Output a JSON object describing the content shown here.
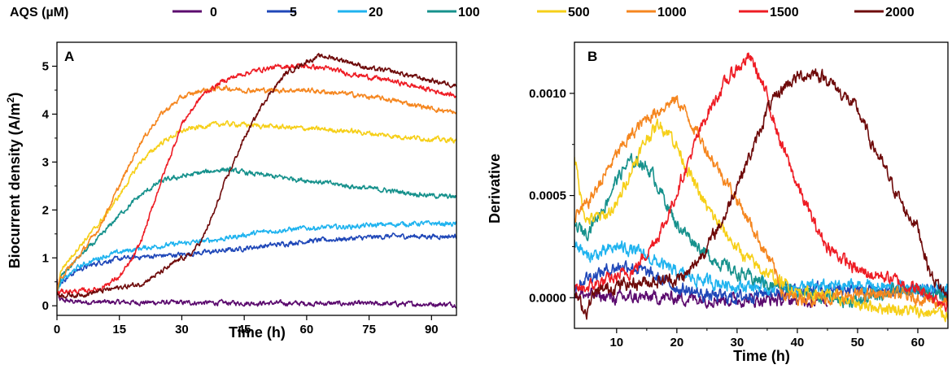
{
  "legend": {
    "title": "AQS (µM)",
    "entries": [
      {
        "label": "0",
        "color": "#5b0a6e"
      },
      {
        "label": "5",
        "color": "#1f47b8"
      },
      {
        "label": "20",
        "color": "#1fb3ef"
      },
      {
        "label": "100",
        "color": "#16918c"
      },
      {
        "label": "500",
        "color": "#f6cf18"
      },
      {
        "label": "1000",
        "color": "#f5861f"
      },
      {
        "label": "1500",
        "color": "#ee1c24"
      },
      {
        "label": "2000",
        "color": "#6e0a0a"
      }
    ]
  },
  "chart_data": [
    {
      "panel": "A",
      "type": "line",
      "title": "",
      "xlabel": "Time (h)",
      "ylabel": "Biocurrent density (A/m²)",
      "ylabel_main": "Biocurrent density (A/m",
      "ylabel_sup": "2",
      "ylabel_close": ")",
      "xlim": [
        0,
        96
      ],
      "ylim": [
        -0.2,
        5.5
      ],
      "xticks": [
        0,
        15,
        30,
        45,
        60,
        75,
        90
      ],
      "xtick_labels": [
        "0",
        "15",
        "30",
        "45",
        "60",
        "75",
        "90"
      ],
      "yticks": [
        0,
        1,
        2,
        3,
        4,
        5
      ],
      "ytick_labels": [
        "0",
        "1",
        "2",
        "3",
        "4",
        "5"
      ],
      "noise": 0.035,
      "series": [
        {
          "name": "0",
          "color": "#5b0a6e",
          "x": [
            0,
            0.5,
            5,
            20,
            40,
            60,
            80,
            96
          ],
          "y": [
            0.55,
            0.12,
            0.08,
            0.07,
            0.06,
            0.05,
            0.04,
            0.03
          ]
        },
        {
          "name": "5",
          "color": "#1f47b8",
          "x": [
            0,
            1,
            5,
            10,
            15,
            20,
            30,
            40,
            50,
            60,
            70,
            80,
            90,
            96
          ],
          "y": [
            0.3,
            0.5,
            0.75,
            0.9,
            0.98,
            1.02,
            1.07,
            1.15,
            1.25,
            1.35,
            1.4,
            1.45,
            1.45,
            1.45
          ]
        },
        {
          "name": "20",
          "color": "#1fb3ef",
          "x": [
            0,
            1,
            5,
            10,
            15,
            20,
            30,
            40,
            50,
            60,
            70,
            80,
            90,
            96
          ],
          "y": [
            0.3,
            0.5,
            0.8,
            1.0,
            1.12,
            1.2,
            1.3,
            1.4,
            1.55,
            1.62,
            1.65,
            1.7,
            1.72,
            1.7
          ]
        },
        {
          "name": "100",
          "color": "#16918c",
          "x": [
            0,
            1,
            5,
            10,
            15,
            20,
            25,
            30,
            35,
            40,
            45,
            50,
            60,
            70,
            80,
            90,
            96
          ],
          "y": [
            0.3,
            0.6,
            1.0,
            1.4,
            1.9,
            2.3,
            2.6,
            2.7,
            2.78,
            2.85,
            2.78,
            2.72,
            2.62,
            2.5,
            2.4,
            2.3,
            2.27
          ]
        },
        {
          "name": "500",
          "color": "#f6cf18",
          "x": [
            0,
            1,
            5,
            10,
            15,
            20,
            25,
            30,
            35,
            40,
            45,
            50,
            60,
            70,
            80,
            90,
            96
          ],
          "y": [
            0.3,
            0.75,
            1.2,
            1.7,
            2.3,
            3.0,
            3.4,
            3.65,
            3.75,
            3.8,
            3.78,
            3.75,
            3.7,
            3.65,
            3.55,
            3.48,
            3.45
          ]
        },
        {
          "name": "1000",
          "color": "#f5861f",
          "x": [
            0,
            1,
            5,
            10,
            15,
            20,
            25,
            30,
            35,
            40,
            45,
            50,
            60,
            70,
            80,
            90,
            96
          ],
          "y": [
            0.3,
            0.6,
            1.0,
            1.6,
            2.5,
            3.4,
            4.0,
            4.35,
            4.5,
            4.55,
            4.5,
            4.5,
            4.5,
            4.42,
            4.3,
            4.12,
            4.02
          ]
        },
        {
          "name": "1500",
          "color": "#ee1c24",
          "x": [
            0,
            1,
            5,
            10,
            15,
            18,
            20,
            22,
            25,
            28,
            30,
            35,
            40,
            45,
            50,
            55,
            60,
            65,
            70,
            80,
            90,
            96
          ],
          "y": [
            0.25,
            0.3,
            0.3,
            0.35,
            0.6,
            0.95,
            1.3,
            1.8,
            2.6,
            3.3,
            3.8,
            4.4,
            4.7,
            4.85,
            4.95,
            5.0,
            5.0,
            4.95,
            4.85,
            4.7,
            4.5,
            4.38
          ]
        },
        {
          "name": "2000",
          "color": "#6e0a0a",
          "x": [
            0,
            1,
            5,
            10,
            15,
            20,
            25,
            30,
            32,
            35,
            38,
            40,
            45,
            50,
            55,
            60,
            63,
            65,
            70,
            75,
            80,
            85,
            90,
            96
          ],
          "y": [
            0.25,
            0.22,
            0.22,
            0.3,
            0.38,
            0.45,
            0.7,
            1.0,
            1.05,
            1.4,
            2.0,
            2.5,
            3.5,
            4.3,
            4.85,
            5.1,
            5.2,
            5.2,
            5.1,
            4.95,
            4.9,
            4.8,
            4.7,
            4.6
          ]
        }
      ]
    },
    {
      "panel": "B",
      "type": "line",
      "title": "",
      "xlabel": "Time (h)",
      "ylabel": "Derivative",
      "xlim": [
        3,
        65
      ],
      "ylim": [
        -0.00015,
        0.00125
      ],
      "xticks": [
        10,
        20,
        30,
        40,
        50,
        60
      ],
      "xtick_labels": [
        "10",
        "20",
        "30",
        "40",
        "50",
        "60"
      ],
      "yticks": [
        0,
        0.0005,
        0.001
      ],
      "ytick_labels": [
        "0.0000",
        "0.0005",
        "0.0010"
      ],
      "noise": 2.2e-05,
      "series": [
        {
          "name": "0",
          "color": "#5b0a6e",
          "x": [
            3,
            10,
            20,
            30,
            40,
            45
          ],
          "y": [
            2e-05,
            0.0,
            0.0,
            -1e-05,
            -1e-05,
            -1e-05
          ]
        },
        {
          "name": "5",
          "color": "#1f47b8",
          "x": [
            3,
            5,
            8,
            10,
            12,
            15,
            20,
            25,
            30,
            35,
            40,
            50,
            60,
            65
          ],
          "y": [
            5e-05,
            0.0001,
            0.00013,
            0.00015,
            0.00016,
            0.00012,
            5e-05,
            1e-05,
            0.0,
            3e-05,
            4e-05,
            4e-05,
            3e-05,
            3e-05
          ]
        },
        {
          "name": "20",
          "color": "#1fb3ef",
          "x": [
            3,
            5,
            8,
            10,
            12,
            15,
            20,
            25,
            30,
            35,
            40,
            50,
            60,
            65
          ],
          "y": [
            0.00028,
            0.0002,
            0.00022,
            0.00025,
            0.00024,
            0.0002,
            0.00012,
            8e-05,
            6e-05,
            5e-05,
            5e-05,
            6e-05,
            4e-05,
            3e-05
          ]
        },
        {
          "name": "100",
          "color": "#16918c",
          "x": [
            3,
            5,
            8,
            10,
            12,
            14,
            16,
            18,
            20,
            25,
            30,
            35,
            40,
            45,
            50,
            55,
            60,
            65
          ],
          "y": [
            0.00035,
            0.00032,
            0.00045,
            0.00058,
            0.00066,
            0.00067,
            0.0006,
            0.00048,
            0.00036,
            0.00021,
            0.00012,
            7e-05,
            3e-05,
            0.0,
            -2e-05,
            3e-05,
            3e-05,
            0.0
          ]
        },
        {
          "name": "500",
          "color": "#f6cf18",
          "x": [
            3,
            4,
            5,
            8,
            10,
            12,
            15,
            17,
            19,
            21,
            23,
            25,
            28,
            30,
            33,
            36,
            40,
            45,
            50,
            55,
            60,
            65
          ],
          "y": [
            0.0007,
            0.0005,
            0.00038,
            0.0004,
            0.00045,
            0.0006,
            0.00078,
            0.00085,
            0.0008,
            0.00068,
            0.00055,
            0.00044,
            0.00032,
            0.00024,
            0.00016,
            0.0001,
            3e-05,
            1e-05,
            -3e-05,
            -5e-05,
            -7e-05,
            -8e-05
          ]
        },
        {
          "name": "1000",
          "color": "#f5861f",
          "x": [
            3,
            5,
            8,
            10,
            12,
            15,
            18,
            20,
            22,
            25,
            28,
            30,
            33,
            36,
            38,
            40,
            45,
            50,
            55,
            60,
            65
          ],
          "y": [
            0.0004,
            0.00045,
            0.0006,
            0.0007,
            0.00078,
            0.00088,
            0.00094,
            0.00097,
            0.00088,
            0.00072,
            0.00058,
            0.00048,
            0.00032,
            0.00015,
            0.0,
            0.0,
            0.0,
            1e-05,
            2e-05,
            0.0,
            -3e-05
          ]
        },
        {
          "name": "1500",
          "color": "#ee1c24",
          "x": [
            3,
            5,
            8,
            10,
            13,
            15,
            18,
            20,
            23,
            25,
            28,
            30,
            32,
            33,
            35,
            37,
            40,
            43,
            45,
            50,
            55,
            60,
            65
          ],
          "y": [
            3e-05,
            5e-05,
            8e-05,
            0.0001,
            0.00014,
            0.00022,
            0.00036,
            0.00052,
            0.00075,
            0.0009,
            0.00105,
            0.00112,
            0.00118,
            0.00113,
            0.00098,
            0.00078,
            0.00055,
            0.00035,
            0.00025,
            0.00013,
            0.0001,
            4e-05,
            -3e-05
          ]
        },
        {
          "name": "2000",
          "color": "#6e0a0a",
          "x": [
            3,
            4,
            5,
            6,
            8,
            10,
            15,
            20,
            22,
            25,
            28,
            30,
            33,
            35,
            38,
            40,
            43,
            45,
            48,
            50,
            52,
            55,
            58,
            60,
            62,
            65
          ],
          "y": [
            3e-05,
            -3e-05,
            -7e-05,
            1e-05,
            4e-05,
            6e-05,
            8e-05,
            9e-05,
            0.00012,
            0.00025,
            0.0004,
            0.00056,
            0.00075,
            0.00092,
            0.00104,
            0.00108,
            0.0011,
            0.00107,
            0.00098,
            0.00092,
            0.00078,
            0.0006,
            0.00042,
            0.00035,
            0.00012,
            0.0
          ]
        }
      ]
    }
  ]
}
